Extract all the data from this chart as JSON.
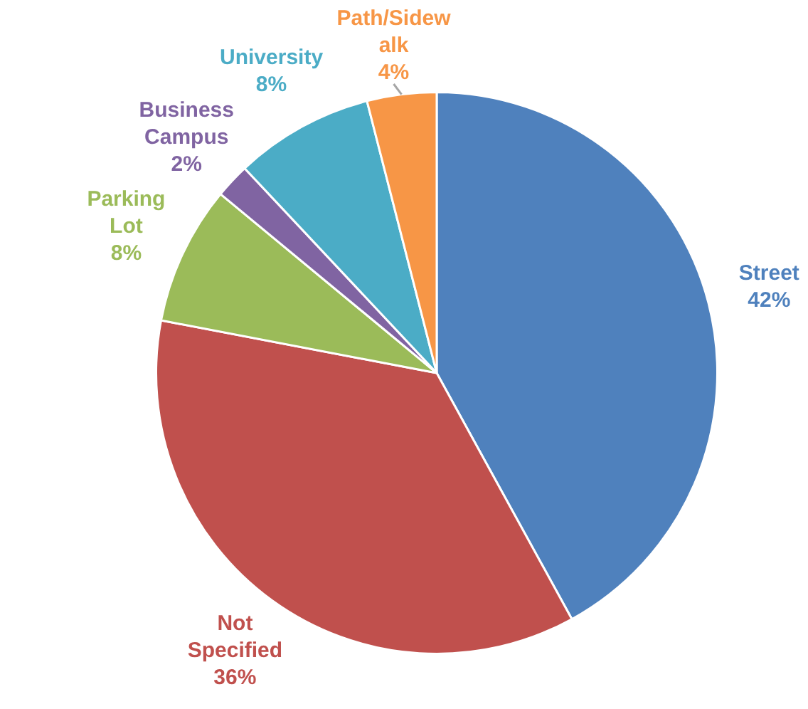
{
  "chart_data": {
    "type": "pie",
    "categories": [
      "Street",
      "Not Specified",
      "Parking Lot",
      "Business Campus",
      "University",
      "Path/Sidewalk"
    ],
    "values": [
      42,
      36,
      8,
      2,
      8,
      4
    ],
    "colors": [
      "#4f81bd",
      "#c0504d",
      "#9bbb59",
      "#8064a2",
      "#4bacc6",
      "#f79646"
    ],
    "value_labels": [
      "42%",
      "36%",
      "8%",
      "2%",
      "8%",
      "4%"
    ],
    "legend": false
  }
}
